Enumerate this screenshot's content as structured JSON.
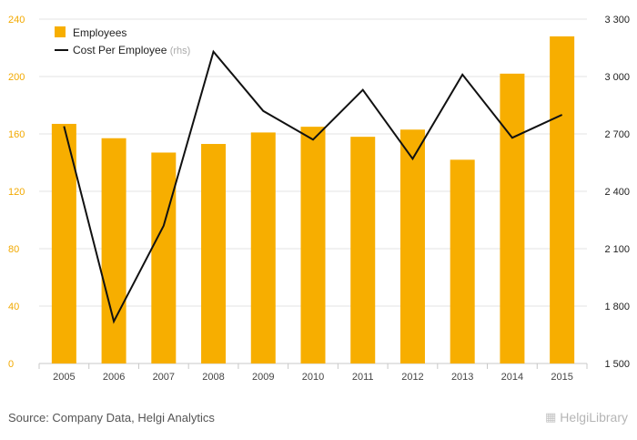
{
  "chart_data": {
    "type": "bar",
    "categories": [
      "2005",
      "2006",
      "2007",
      "2008",
      "2009",
      "2010",
      "2011",
      "2012",
      "2013",
      "2014",
      "2015"
    ],
    "series": [
      {
        "name": "Employees",
        "type": "bar",
        "axis": "left",
        "color": "#f7ae00",
        "values": [
          167,
          157,
          147,
          153,
          161,
          165,
          158,
          163,
          142,
          202,
          228
        ]
      },
      {
        "name": "Cost Per Employee",
        "name_note": "(rhs)",
        "type": "line",
        "axis": "right",
        "color": "#111111",
        "values": [
          2740,
          1720,
          2220,
          3130,
          2820,
          2670,
          2930,
          2570,
          3010,
          2680,
          2800
        ]
      }
    ],
    "left_axis": {
      "min": 0,
      "max": 240,
      "ticks": [
        0,
        40,
        80,
        120,
        160,
        200,
        240
      ],
      "tick_labels": [
        "0",
        "40",
        "80",
        "120",
        "160",
        "200",
        "240"
      ]
    },
    "right_axis": {
      "min": 1500,
      "max": 3300,
      "ticks": [
        1500,
        1800,
        2100,
        2400,
        2700,
        3000,
        3300
      ],
      "tick_labels": [
        "1 500",
        "1 800",
        "2 100",
        "2 400",
        "2 700",
        "3 000",
        "3 300"
      ]
    },
    "grid": true,
    "legend_position": "top-left"
  },
  "footer": {
    "source": "Source: Company Data, Helgi Analytics",
    "brand": "HelgiLibrary"
  }
}
